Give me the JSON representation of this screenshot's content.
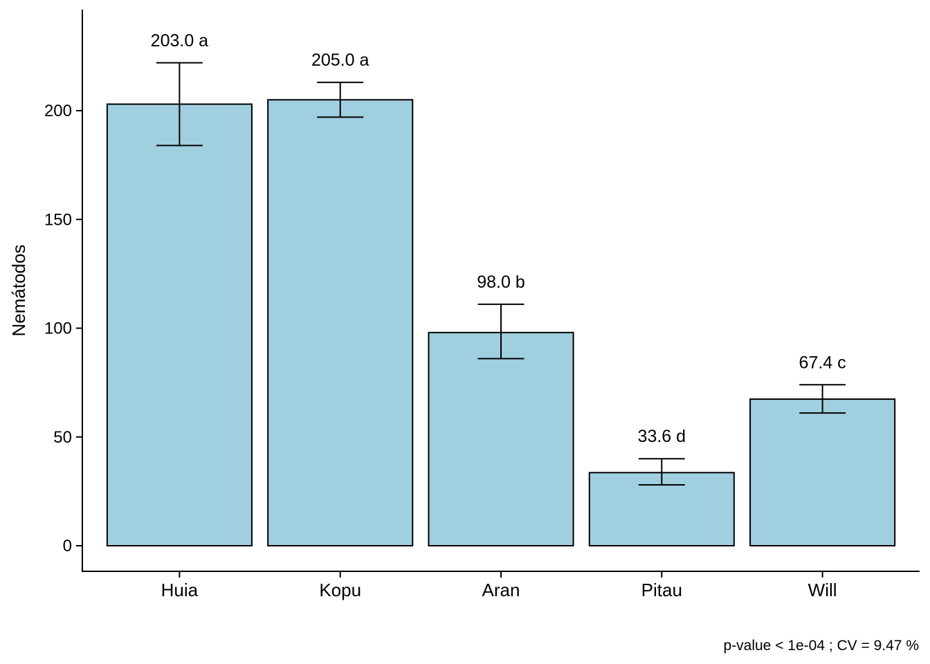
{
  "chart_data": {
    "type": "bar",
    "categories": [
      "Huia",
      "Kopu",
      "Aran",
      "Pitau",
      "Will"
    ],
    "values": [
      203.0,
      205.0,
      98.0,
      33.6,
      67.4
    ],
    "error_low": [
      184,
      197,
      86,
      28,
      61
    ],
    "error_high": [
      222,
      213,
      111,
      40,
      74
    ],
    "labels": [
      "203.0 a",
      "205.0 a",
      "98.0 b",
      "33.6 d",
      "67.4 c"
    ],
    "title": "",
    "xlabel": "",
    "ylabel": "Nemátodos",
    "ylim": [
      -12,
      245
    ],
    "yticks": [
      0,
      50,
      100,
      150,
      200
    ],
    "ytick_labels": [
      "0",
      "50",
      "100",
      "150",
      "200"
    ],
    "grid": false,
    "bar_color": "#a0cfe0",
    "bar_edge_color": "#000000",
    "caption": "p-value < 1e-04 ; CV =  9.47 %"
  }
}
